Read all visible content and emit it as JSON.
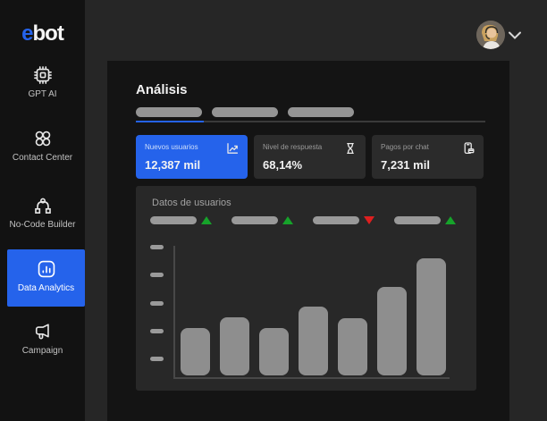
{
  "app": {
    "logo_prefix": "e",
    "logo_suffix": "bot"
  },
  "colors": {
    "accent": "#2563EB",
    "green": "#16A32A",
    "red": "#DE1F1F",
    "bar": "#8E8E8E",
    "panel": "#141414"
  },
  "sidebar": {
    "items": [
      {
        "label": "GPT AI",
        "icon": "chip-icon",
        "active": false
      },
      {
        "label": "Contact Center",
        "icon": "clover-icon",
        "active": false
      },
      {
        "label": "No-Code Builder",
        "icon": "workflow-icon",
        "active": false
      },
      {
        "label": "Data Analytics",
        "icon": "bar-chart-icon",
        "active": true
      },
      {
        "label": "Campaign",
        "icon": "megaphone-icon",
        "active": false
      }
    ]
  },
  "main": {
    "title": "Análisis",
    "tabs": {
      "count": 3,
      "active_index": 0,
      "labels_visible": false
    },
    "cards": [
      {
        "label": "Nuevos usuarios",
        "value": "12,387 mil",
        "icon": "trend-chart-icon",
        "accent": true
      },
      {
        "label": "Nivel de respuesta",
        "value": "68,14%",
        "icon": "hourglass-icon",
        "accent": false
      },
      {
        "label": "Pagos por chat",
        "value": "7,231 mil",
        "icon": "mobile-payment-icon",
        "accent": false
      }
    ]
  },
  "chart_data": {
    "type": "bar",
    "title": "Datos de usuarios",
    "categories": [
      "",
      "",
      "",
      "",
      "",
      "",
      ""
    ],
    "values": [
      53,
      66,
      52,
      77,
      64,
      99,
      131
    ],
    "value_note": "axis unlabeled (skeleton ticks); values are relative heights",
    "xlabel": "",
    "ylabel": "",
    "ylim": [
      0,
      142
    ],
    "grid": false,
    "y_tick_count": 5,
    "bar_color": "#8E8E8E",
    "legend": {
      "entries": 4,
      "labels_visible": false,
      "trends": [
        "up",
        "up",
        "down",
        "up"
      ],
      "position": "top"
    }
  }
}
